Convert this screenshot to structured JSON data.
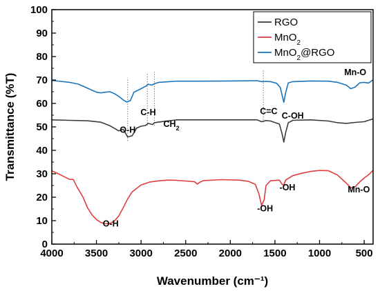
{
  "chart_data": {
    "type": "line",
    "xlabel": "Wavenumber (cm⁻¹)",
    "ylabel": "Transmittance (%T)",
    "xlim": [
      4000,
      400
    ],
    "ylim": [
      0,
      100
    ],
    "xticks": [
      4000,
      3500,
      3000,
      2500,
      2000,
      1500,
      1000,
      500
    ],
    "yticks": [
      0,
      10,
      20,
      30,
      40,
      50,
      60,
      70,
      80,
      90,
      100
    ],
    "x_reversed": true,
    "grid": false,
    "legend_position": "top-right",
    "series": [
      {
        "name": "RGO",
        "color": "#3a3a3a",
        "points": [
          [
            4000,
            53
          ],
          [
            3800,
            52.8
          ],
          [
            3600,
            52.6
          ],
          [
            3450,
            52
          ],
          [
            3350,
            50.5
          ],
          [
            3250,
            48.3
          ],
          [
            3200,
            49
          ],
          [
            3150,
            45.7
          ],
          [
            3100,
            46.2
          ],
          [
            3050,
            49.5
          ],
          [
            3000,
            50.3
          ],
          [
            2950,
            50.6
          ],
          [
            2920,
            51.5
          ],
          [
            2870,
            51
          ],
          [
            2850,
            51.8
          ],
          [
            2800,
            52.1
          ],
          [
            2600,
            53
          ],
          [
            2300,
            53
          ],
          [
            2000,
            53
          ],
          [
            1700,
            53
          ],
          [
            1650,
            52.2
          ],
          [
            1600,
            52.7
          ],
          [
            1550,
            52.5
          ],
          [
            1450,
            51.2
          ],
          [
            1420,
            47
          ],
          [
            1400,
            43.5
          ],
          [
            1380,
            47.5
          ],
          [
            1350,
            51.8
          ],
          [
            1300,
            52.8
          ],
          [
            1100,
            53
          ],
          [
            900,
            52.5
          ],
          [
            800,
            51.8
          ],
          [
            700,
            51.5
          ],
          [
            600,
            51.9
          ],
          [
            500,
            52.2
          ],
          [
            400,
            53.4
          ]
        ]
      },
      {
        "name": "MnO₂",
        "color": "#e03c3c",
        "points": [
          [
            4000,
            31.3
          ],
          [
            3900,
            29.5
          ],
          [
            3800,
            27.6
          ],
          [
            3760,
            27.6
          ],
          [
            3720,
            24.5
          ],
          [
            3650,
            20
          ],
          [
            3600,
            15.5
          ],
          [
            3550,
            12.5
          ],
          [
            3500,
            10.5
          ],
          [
            3450,
            9.2
          ],
          [
            3400,
            8.7
          ],
          [
            3350,
            8.8
          ],
          [
            3300,
            9.8
          ],
          [
            3250,
            12
          ],
          [
            3200,
            15.5
          ],
          [
            3150,
            19.3
          ],
          [
            3100,
            22.3
          ],
          [
            3000,
            25.2
          ],
          [
            2900,
            26.5
          ],
          [
            2800,
            27
          ],
          [
            2700,
            27.3
          ],
          [
            2600,
            27.2
          ],
          [
            2500,
            26.9
          ],
          [
            2400,
            26.6
          ],
          [
            2370,
            25.6
          ],
          [
            2340,
            26.4
          ],
          [
            2300,
            27.1
          ],
          [
            2100,
            27.5
          ],
          [
            1900,
            27.3
          ],
          [
            1800,
            26.8
          ],
          [
            1720,
            25.5
          ],
          [
            1680,
            21.5
          ],
          [
            1650,
            16.5
          ],
          [
            1620,
            19
          ],
          [
            1600,
            25
          ],
          [
            1550,
            27
          ],
          [
            1450,
            27.3
          ],
          [
            1420,
            25.5
          ],
          [
            1400,
            25.2
          ],
          [
            1380,
            27.3
          ],
          [
            1300,
            29.2
          ],
          [
            1200,
            30.2
          ],
          [
            1100,
            31
          ],
          [
            1000,
            31.4
          ],
          [
            900,
            31.3
          ],
          [
            800,
            29.5
          ],
          [
            700,
            26
          ],
          [
            650,
            24
          ],
          [
            600,
            24.5
          ],
          [
            550,
            26.5
          ],
          [
            500,
            28.2
          ],
          [
            450,
            29.6
          ],
          [
            400,
            31.5
          ]
        ]
      },
      {
        "name": "MnO₂@RGO",
        "color": "#1a72b8",
        "points": [
          [
            4000,
            69.8
          ],
          [
            3900,
            69.4
          ],
          [
            3800,
            69
          ],
          [
            3700,
            68.2
          ],
          [
            3600,
            66.5
          ],
          [
            3500,
            64.8
          ],
          [
            3450,
            64.5
          ],
          [
            3400,
            64.8
          ],
          [
            3350,
            65
          ],
          [
            3300,
            64.2
          ],
          [
            3250,
            63
          ],
          [
            3200,
            61.5
          ],
          [
            3160,
            60.6
          ],
          [
            3120,
            61.2
          ],
          [
            3080,
            64.8
          ],
          [
            3000,
            66.3
          ],
          [
            2950,
            67.3
          ],
          [
            2920,
            68.2
          ],
          [
            2880,
            67.8
          ],
          [
            2850,
            68.4
          ],
          [
            2800,
            69
          ],
          [
            2600,
            69.5
          ],
          [
            2300,
            69.5
          ],
          [
            2000,
            69.6
          ],
          [
            1700,
            69.7
          ],
          [
            1650,
            69.3
          ],
          [
            1600,
            69.4
          ],
          [
            1550,
            69.3
          ],
          [
            1480,
            68.6
          ],
          [
            1440,
            66.8
          ],
          [
            1420,
            63.5
          ],
          [
            1400,
            60.5
          ],
          [
            1380,
            64.5
          ],
          [
            1350,
            68.8
          ],
          [
            1300,
            69.3
          ],
          [
            1100,
            69.6
          ],
          [
            900,
            69.5
          ],
          [
            800,
            69
          ],
          [
            700,
            67.8
          ],
          [
            650,
            66.3
          ],
          [
            600,
            67
          ],
          [
            550,
            68.8
          ],
          [
            500,
            69
          ],
          [
            450,
            68.7
          ],
          [
            400,
            70.1
          ]
        ]
      }
    ],
    "annotations": [
      {
        "text": "O-H",
        "x": 3150,
        "y": 47.5
      },
      {
        "text": "C-H",
        "x": 2920,
        "y": 55
      },
      {
        "text": "CH₂",
        "x": 2660,
        "y": 50
      },
      {
        "text": "C=C",
        "x": 1570,
        "y": 55.5
      },
      {
        "text": "C-OH",
        "x": 1300,
        "y": 53.5
      },
      {
        "text": "Mn-O",
        "x": 600,
        "y": 72
      },
      {
        "text": "O-H",
        "x": 3340,
        "y": 7.5
      },
      {
        "text": "-OH",
        "x": 1610,
        "y": 14
      },
      {
        "text": "-OH",
        "x": 1360,
        "y": 23
      },
      {
        "text": "Mn-O",
        "x": 560,
        "y": 22
      }
    ],
    "dotted_lines": [
      {
        "x": 3150,
        "y_from": 44,
        "y_to": 71
      },
      {
        "x": 2930,
        "y_from": 50.5,
        "y_to": 73
      },
      {
        "x": 2850,
        "y_from": 50.5,
        "y_to": 73.5
      },
      {
        "x": 1630,
        "y_from": 52,
        "y_to": 74.5
      }
    ]
  }
}
